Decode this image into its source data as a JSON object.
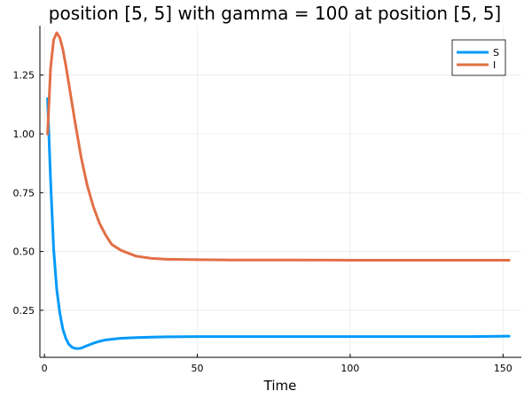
{
  "chart_data": {
    "type": "line",
    "title": "position [5, 5] with gamma = 100 at position [5, 5]",
    "xlabel": "Time",
    "ylabel": "",
    "xlim": [
      -1.5,
      156
    ],
    "ylim": [
      0.05,
      1.46
    ],
    "xticks": [
      0,
      50,
      100,
      150
    ],
    "xtick_labels": [
      "0",
      "50",
      "100",
      "150"
    ],
    "yticks": [
      0.25,
      0.5,
      0.75,
      1.0,
      1.25
    ],
    "ytick_labels": [
      "0.25",
      "0.50",
      "0.75",
      "1.00",
      "1.25"
    ],
    "grid": true,
    "legend_position": "top-right",
    "series": [
      {
        "name": "S",
        "color": "#009AFA",
        "x": [
          1,
          2,
          3,
          4,
          5,
          6,
          7,
          8,
          9,
          10,
          11,
          12,
          14,
          16,
          18,
          20,
          25,
          30,
          35,
          40,
          50,
          60,
          80,
          100,
          120,
          140,
          152
        ],
        "y": [
          1.15,
          0.8,
          0.51,
          0.34,
          0.24,
          0.17,
          0.13,
          0.105,
          0.093,
          0.088,
          0.087,
          0.089,
          0.1,
          0.11,
          0.118,
          0.124,
          0.131,
          0.134,
          0.136,
          0.137,
          0.138,
          0.138,
          0.138,
          0.138,
          0.138,
          0.138,
          0.14
        ]
      },
      {
        "name": "I",
        "color": "#E26F46",
        "x": [
          1,
          2,
          3,
          4,
          5,
          6,
          7,
          8,
          10,
          12,
          14,
          16,
          18,
          20,
          22,
          25,
          30,
          35,
          40,
          50,
          60,
          80,
          100,
          120,
          140,
          152
        ],
        "y": [
          1.0,
          1.28,
          1.4,
          1.43,
          1.41,
          1.36,
          1.29,
          1.21,
          1.05,
          0.9,
          0.78,
          0.69,
          0.62,
          0.57,
          0.53,
          0.505,
          0.48,
          0.471,
          0.467,
          0.465,
          0.464,
          0.464,
          0.463,
          0.463,
          0.463,
          0.463
        ]
      }
    ]
  }
}
